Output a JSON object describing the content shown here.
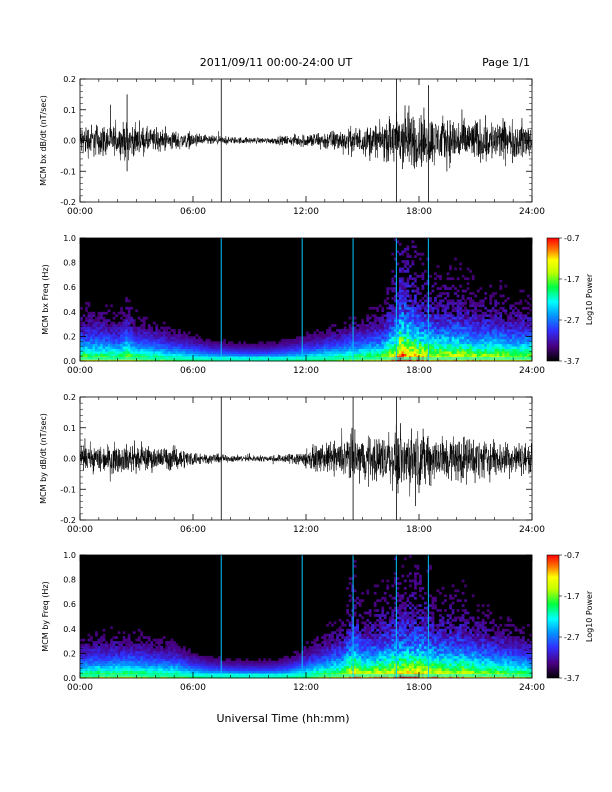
{
  "header": {
    "title": "2011/09/11  00:00-24:00 UT",
    "page": "Page 1/1"
  },
  "xlabel": "Universal Time (hh:mm)",
  "colors": {
    "trace": "#000000",
    "spectrogram_background": "#000000",
    "colormap": [
      "#000000",
      "#3a0060",
      "#6a00c8",
      "#2020ff",
      "#00a0ff",
      "#00ffff",
      "#00ff60",
      "#c0ff00",
      "#ffff00",
      "#ff8000",
      "#ff0000"
    ]
  },
  "colorbar": {
    "label": "Log10 Power",
    "ticks": [
      "-0.7",
      "-1.7",
      "-2.7",
      "-3.7"
    ]
  },
  "chart_data": [
    {
      "type": "line",
      "id": "bx-trace",
      "ylabel": "MCM bx dB/dt (nT/sec)",
      "xlim": [
        0,
        24
      ],
      "ylim": [
        -0.2,
        0.2
      ],
      "x_ticks": [
        "00:00",
        "06:00",
        "12:00",
        "18:00",
        "24:00"
      ],
      "y_ticks": [
        "-0.2",
        "-0.1",
        "0.0",
        "0.1",
        "0.2"
      ],
      "envelope": {
        "hours": [
          0,
          1,
          2,
          2.5,
          3,
          4,
          5,
          6,
          7,
          8,
          9,
          10,
          11,
          12,
          13,
          14,
          15,
          16,
          16.8,
          17,
          18,
          19,
          20,
          21,
          22,
          23,
          24
        ],
        "amplitude": [
          0.07,
          0.07,
          0.06,
          0.08,
          0.06,
          0.05,
          0.04,
          0.03,
          0.02,
          0.015,
          0.013,
          0.013,
          0.02,
          0.03,
          0.04,
          0.05,
          0.06,
          0.07,
          0.12,
          0.15,
          0.12,
          0.1,
          0.1,
          0.09,
          0.09,
          0.08,
          0.08
        ]
      },
      "spikes": [
        {
          "hour": 7.5,
          "min": -0.2,
          "max": 0.2
        },
        {
          "hour": 2.5,
          "min": -0.1,
          "max": 0.15
        },
        {
          "hour": 16.8,
          "min": -0.2,
          "max": 0.2
        },
        {
          "hour": 18.5,
          "min": -0.2,
          "max": 0.18
        }
      ]
    },
    {
      "type": "heatmap",
      "id": "bx-spectrogram",
      "ylabel": "MCM bx Freq (Hz)",
      "xlim": [
        0,
        24
      ],
      "ylim": [
        0,
        1.0
      ],
      "x_ticks": [
        "00:00",
        "06:00",
        "12:00",
        "18:00",
        "24:00"
      ],
      "y_ticks": [
        "0.0",
        "0.2",
        "0.4",
        "0.6",
        "0.8",
        "1.0"
      ],
      "clim": [
        -3.7,
        -0.7
      ],
      "vertical_lines_hours": [
        7.5,
        11.8,
        14.5,
        16.8,
        18.5
      ]
    },
    {
      "type": "line",
      "id": "by-trace",
      "ylabel": "MCM by dB/dt (nT/sec)",
      "xlim": [
        0,
        24
      ],
      "ylim": [
        -0.2,
        0.2
      ],
      "x_ticks": [
        "00:00",
        "06:00",
        "12:00",
        "18:00",
        "24:00"
      ],
      "y_ticks": [
        "-0.2",
        "-0.1",
        "0.0",
        "0.1",
        "0.2"
      ],
      "envelope": {
        "hours": [
          0,
          1,
          2,
          3,
          4,
          5,
          6,
          7,
          8,
          9,
          10,
          11,
          12,
          13,
          14,
          14.5,
          15,
          16,
          17,
          18,
          19,
          20,
          21,
          22,
          23,
          24
        ],
        "amplitude": [
          0.05,
          0.06,
          0.06,
          0.06,
          0.05,
          0.05,
          0.03,
          0.02,
          0.015,
          0.013,
          0.013,
          0.02,
          0.04,
          0.06,
          0.08,
          0.12,
          0.09,
          0.1,
          0.12,
          0.12,
          0.1,
          0.1,
          0.09,
          0.08,
          0.07,
          0.06
        ]
      },
      "spikes": [
        {
          "hour": 7.5,
          "min": -0.2,
          "max": 0.2
        },
        {
          "hour": 14.5,
          "min": -0.2,
          "max": 0.2
        },
        {
          "hour": 16.8,
          "min": -0.2,
          "max": 0.2
        }
      ]
    },
    {
      "type": "heatmap",
      "id": "by-spectrogram",
      "ylabel": "MCM by Freq (Hz)",
      "xlim": [
        0,
        24
      ],
      "ylim": [
        0,
        1.0
      ],
      "x_ticks": [
        "00:00",
        "06:00",
        "12:00",
        "18:00",
        "24:00"
      ],
      "y_ticks": [
        "0.0",
        "0.2",
        "0.4",
        "0.6",
        "0.8",
        "1.0"
      ],
      "clim": [
        -3.7,
        -0.7
      ],
      "vertical_lines_hours": [
        7.5,
        11.8,
        14.5,
        16.8,
        18.5
      ]
    }
  ]
}
